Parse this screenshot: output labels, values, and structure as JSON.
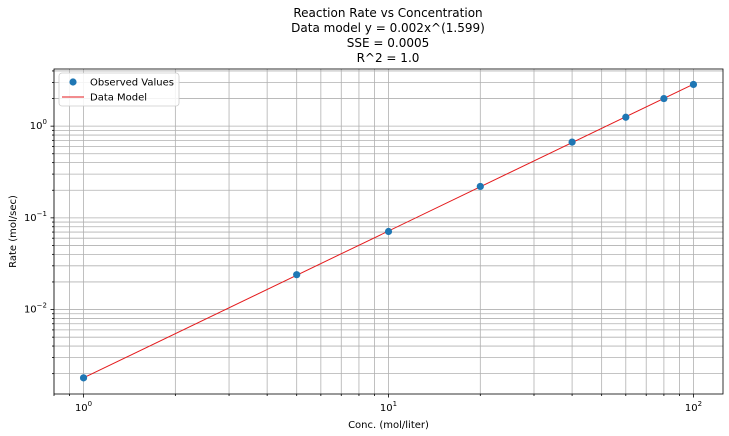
{
  "chart_data": {
    "type": "scatter",
    "title_lines": [
      "Reaction Rate vs Concentration",
      "Data model y = 0.002x^(1.599)",
      "SSE = 0.0005",
      "R^2 = 1.0"
    ],
    "xlabel": "Conc. (mol/liter)",
    "ylabel": "Rate (mol/sec)",
    "xscale": "log",
    "yscale": "log",
    "xlim": [
      0.8,
      125
    ],
    "ylim": [
      0.0012,
      4.2
    ],
    "grid": true,
    "grid_minor": true,
    "legend_position": "top-left",
    "x_tick_labels": [
      {
        "value": 1,
        "base": "10",
        "exp": "0"
      },
      {
        "value": 10,
        "base": "10",
        "exp": "1"
      },
      {
        "value": 100,
        "base": "10",
        "exp": "2"
      }
    ],
    "y_tick_labels": [
      {
        "value": 0.01,
        "base": "10",
        "exp": "−2"
      },
      {
        "value": 0.1,
        "base": "10",
        "exp": "−1"
      },
      {
        "value": 1,
        "base": "10",
        "exp": "0"
      }
    ],
    "series": [
      {
        "name": "Observed Values",
        "kind": "points",
        "color": "#1f77b4",
        "x": [
          1,
          5,
          10,
          20,
          40,
          60,
          80,
          100
        ],
        "y": [
          0.0018,
          0.024,
          0.071,
          0.22,
          0.67,
          1.25,
          2.0,
          2.85
        ]
      },
      {
        "name": "Data Model",
        "kind": "line",
        "color": "#e41a1c",
        "x": [
          1,
          100
        ],
        "y": [
          0.0018,
          2.87
        ]
      }
    ]
  }
}
